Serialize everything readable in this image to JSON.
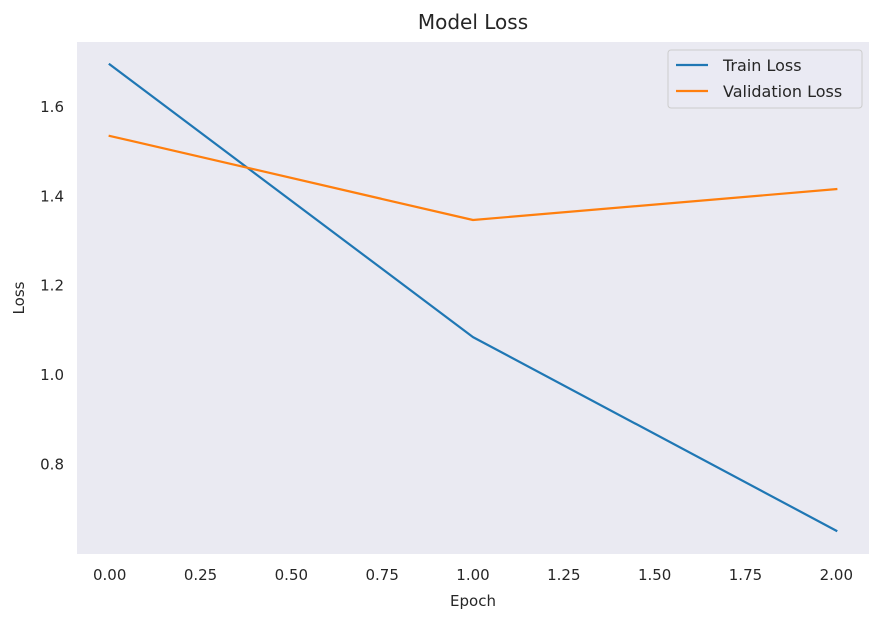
{
  "chart_data": {
    "type": "line",
    "title": "Model Loss",
    "xlabel": "Epoch",
    "ylabel": "Loss",
    "xlim": [
      -0.09,
      2.09
    ],
    "ylim": [
      0.6,
      1.745
    ],
    "xticks": [
      0.0,
      0.25,
      0.5,
      0.75,
      1.0,
      1.25,
      1.5,
      1.75,
      2.0
    ],
    "xtick_labels": [
      "0.00",
      "0.25",
      "0.50",
      "0.75",
      "1.00",
      "1.25",
      "1.50",
      "1.75",
      "2.00"
    ],
    "yticks": [
      0.8,
      1.0,
      1.2,
      1.4,
      1.6
    ],
    "ytick_labels": [
      "0.8",
      "1.0",
      "1.2",
      "1.4",
      "1.6"
    ],
    "grid": false,
    "background": "#eaeaf2",
    "legend_position": "top-right",
    "x": [
      0,
      1,
      2
    ],
    "series": [
      {
        "name": "Train Loss",
        "values": [
          1.695,
          1.085,
          0.652
        ],
        "color": "#1f77b4"
      },
      {
        "name": "Validation Loss",
        "values": [
          1.535,
          1.347,
          1.416
        ],
        "color": "#ff7f0e"
      }
    ]
  }
}
